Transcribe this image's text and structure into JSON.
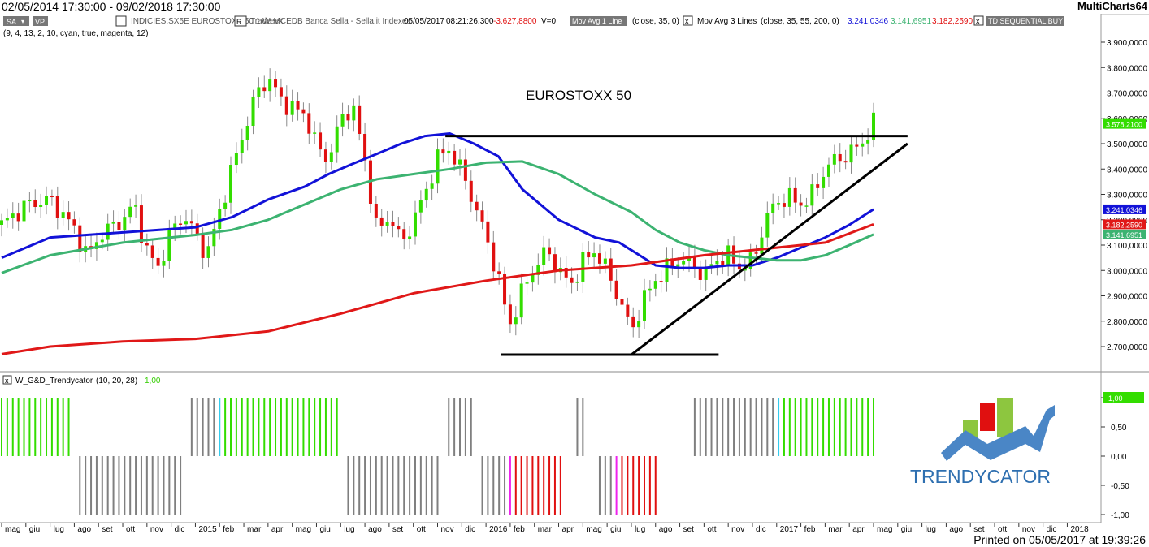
{
  "window": {
    "date_range": "02/05/2014 17:30:00 - 09/02/2018 17:30:00",
    "app_name": "MultiCharts64"
  },
  "toolbar": {
    "sa_label": "SA",
    "vp_label": "VP",
    "symbol_info": "INDICIES.SX5E   EUROSTOXX 50   1 Week",
    "r_label": "R",
    "feed_info": "Trade   MCEDB   Banca Sella - Sella.it   Indexes",
    "datetime": "05/05/2017",
    "time": "08:21:26.300",
    "change": "-3.627,8800",
    "volume": "V=0",
    "study1_name": "Mov Avg 1 Line",
    "study1_params": "(close,  35,  0)",
    "study2_name": "Mov Avg 3 Lines",
    "study2_params": "(close,  35,  55,  200,  0)",
    "study2_v1": "3.241,0346",
    "study2_v2": "3.141,6951",
    "study2_v3": "3.182,2590",
    "study3_name": "TD SEQUENTIAL BUY",
    "params_line": "(9,  4,  13,  2,  10,  cyan,  true,  magenta,  12)",
    "close_icon": "x"
  },
  "colors": {
    "up": "#33dd00",
    "down": "#e01010",
    "ma_blue": "#1212d8",
    "ma_green": "#3cb371",
    "ma_red": "#e01818",
    "trendline": "#000000",
    "gray_bar": "#7f7f7f",
    "cyan": "#33ccee",
    "magenta": "#ee22ee"
  },
  "chart_title": "EUROSTOXX 50",
  "chart_data": [
    {
      "type": "candlestick",
      "title": "EUROSTOXX 50",
      "ylim": [
        2620,
        3930
      ],
      "y_ticks": [
        "3.900,0000",
        "3.800,0000",
        "3.700,0000",
        "3.600,0000",
        "3.500,0000",
        "3.400,0000",
        "3.300,0000",
        "3.200,0000",
        "3.100,0000",
        "3.000,0000",
        "2.900,0000",
        "2.800,0000",
        "2.700,0000"
      ],
      "last_price": "3.578,2100",
      "ma_labels": [
        "3.241,0346",
        "3.182,2590",
        "3.141,6951"
      ],
      "series": [
        {
          "name": "Mov Avg 1 Line",
          "values": [
            [
              2014.333,
              3050
            ],
            [
              2014.5,
              3130
            ],
            [
              2014.75,
              3150
            ],
            [
              2015.0,
              3170
            ],
            [
              2015.125,
              3210
            ],
            [
              2015.25,
              3280
            ],
            [
              2015.375,
              3330
            ],
            [
              2015.458,
              3380
            ],
            [
              2015.54,
              3420
            ],
            [
              2015.625,
              3460
            ],
            [
              2015.708,
              3500
            ],
            [
              2015.79,
              3530
            ],
            [
              2015.875,
              3540
            ],
            [
              2015.958,
              3500
            ],
            [
              2016.042,
              3450
            ],
            [
              2016.125,
              3320
            ],
            [
              2016.25,
              3200
            ],
            [
              2016.375,
              3130
            ],
            [
              2016.458,
              3110
            ],
            [
              2016.5,
              3080
            ],
            [
              2016.583,
              3020
            ],
            [
              2016.667,
              3010
            ],
            [
              2016.75,
              3010
            ],
            [
              2016.833,
              3020
            ],
            [
              2016.917,
              3020
            ],
            [
              2017.0,
              3050
            ],
            [
              2017.083,
              3090
            ],
            [
              2017.167,
              3130
            ],
            [
              2017.25,
              3180
            ],
            [
              2017.333,
              3241
            ]
          ]
        },
        {
          "name": "Mov Avg 3 Lines 55",
          "values": [
            [
              2014.333,
              2990
            ],
            [
              2014.5,
              3060
            ],
            [
              2014.75,
              3110
            ],
            [
              2015.0,
              3140
            ],
            [
              2015.125,
              3160
            ],
            [
              2015.25,
              3200
            ],
            [
              2015.375,
              3260
            ],
            [
              2015.5,
              3320
            ],
            [
              2015.625,
              3360
            ],
            [
              2015.75,
              3380
            ],
            [
              2015.875,
              3400
            ],
            [
              2016.0,
              3425
            ],
            [
              2016.125,
              3430
            ],
            [
              2016.25,
              3380
            ],
            [
              2016.375,
              3300
            ],
            [
              2016.5,
              3230
            ],
            [
              2016.583,
              3160
            ],
            [
              2016.667,
              3110
            ],
            [
              2016.75,
              3080
            ],
            [
              2016.833,
              3060
            ],
            [
              2016.917,
              3050
            ],
            [
              2017.0,
              3040
            ],
            [
              2017.083,
              3040
            ],
            [
              2017.167,
              3060
            ],
            [
              2017.25,
              3100
            ],
            [
              2017.333,
              3142
            ]
          ]
        },
        {
          "name": "Mov Avg 3 Lines 200",
          "values": [
            [
              2014.333,
              2670
            ],
            [
              2014.5,
              2700
            ],
            [
              2014.75,
              2720
            ],
            [
              2015.0,
              2730
            ],
            [
              2015.25,
              2760
            ],
            [
              2015.5,
              2830
            ],
            [
              2015.75,
              2910
            ],
            [
              2016.0,
              2960
            ],
            [
              2016.25,
              3000
            ],
            [
              2016.5,
              3020
            ],
            [
              2016.75,
              3060
            ],
            [
              2017.0,
              3090
            ],
            [
              2017.167,
              3110
            ],
            [
              2017.333,
              3182
            ]
          ]
        },
        {
          "name": "candles",
          "values": []
        }
      ],
      "annotations": [
        "horizontal resistance ~3530",
        "horizontal support ~2670",
        "rising trendline from 2670 to ~3500"
      ]
    },
    {
      "type": "bar",
      "title": "W_G&D_Trendycator",
      "params": "(10,  20,  28)",
      "value_label": "1,00",
      "ylim": [
        -1.1,
        1.1
      ],
      "y_ticks": [
        "1,00",
        "0,50",
        "0,00",
        "-0,50",
        "-1,00"
      ],
      "current_value": "1,00",
      "note": "weekly +1/-1 state bars: green=up, red=down, gray=neutral"
    }
  ],
  "x_axis": {
    "labels": [
      "mag",
      "giu",
      "lug",
      "ago",
      "set",
      "ott",
      "nov",
      "dic",
      "2015",
      "feb",
      "mar",
      "apr",
      "mag",
      "giu",
      "lug",
      "ago",
      "set",
      "ott",
      "nov",
      "dic",
      "2016",
      "feb",
      "mar",
      "apr",
      "mag",
      "giu",
      "lug",
      "ago",
      "set",
      "ott",
      "nov",
      "dic",
      "2017",
      "feb",
      "mar",
      "apr",
      "mag",
      "giu",
      "lug",
      "ago",
      "set",
      "ott",
      "nov",
      "dic",
      "2018"
    ]
  },
  "brand": {
    "logo_text": "TRENDYCATOR"
  },
  "footer": {
    "printed": "Printed on 05/05/2017 at 19:39:26"
  }
}
